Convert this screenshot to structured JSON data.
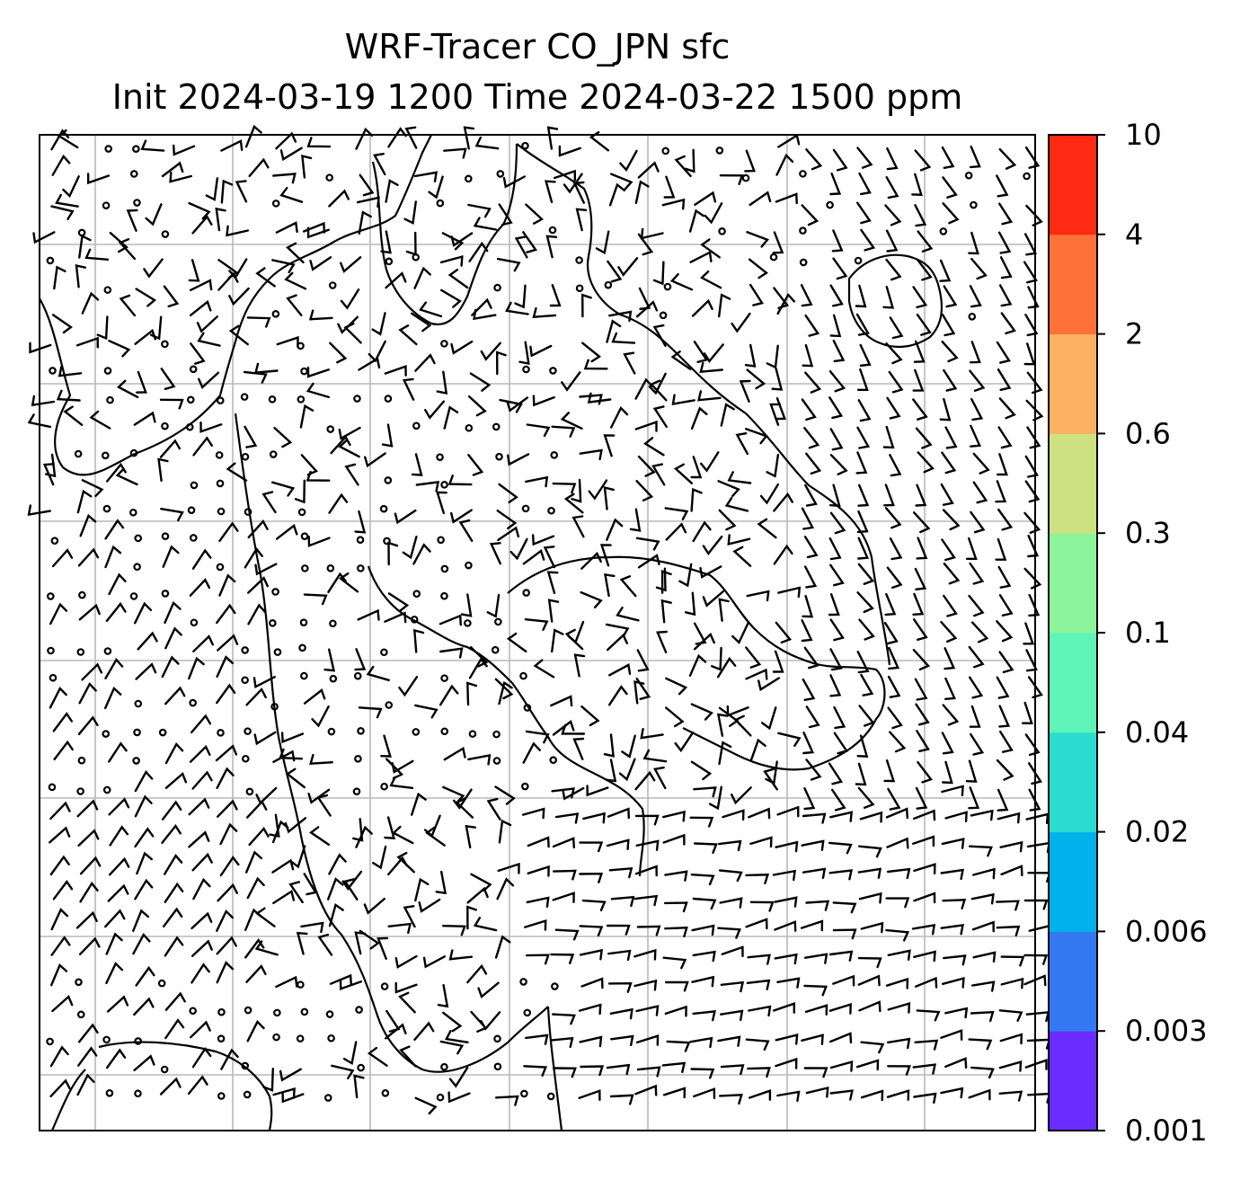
{
  "title": {
    "line1": "WRF-Tracer CO_JPN sfc",
    "line2": "Init 2024-03-19 1200 Time 2024-03-22 1500 ppm"
  },
  "colorbar": {
    "unit": "ppm",
    "levels": [
      "0.001",
      "0.003",
      "0.006",
      "0.02",
      "0.04",
      "0.1",
      "0.3",
      "0.6",
      "2",
      "4",
      "10"
    ],
    "colors": [
      "#6a2cff",
      "#3478f2",
      "#00b1ec",
      "#2bdcd0",
      "#5ff5b8",
      "#8cf59c",
      "#cde082",
      "#fcb262",
      "#ff7139",
      "#ff2a14"
    ]
  },
  "map": {
    "graticule": true,
    "gridline_color": "#b8b8b8",
    "barb_color": "#000000",
    "coastline_color": "#000000",
    "features": [
      "coastlines",
      "wind-barbs",
      "calm-wind-circles",
      "lat-lon-gridlines"
    ]
  }
}
